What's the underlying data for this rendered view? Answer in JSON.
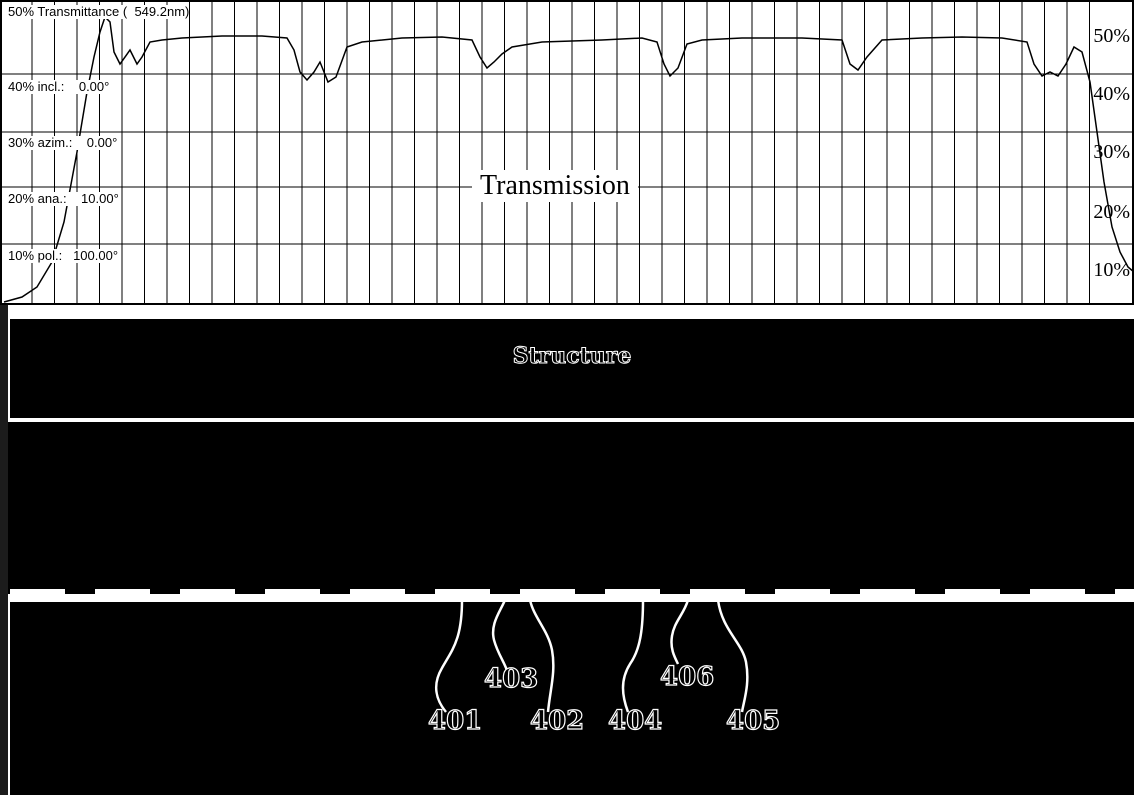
{
  "transmission": {
    "header_label": "50% Transmittance (  549.2nm)",
    "title": "Transmission",
    "left_labels": [
      {
        "pct": "40%",
        "name": "incl.:",
        "value": "0.00°"
      },
      {
        "pct": "30%",
        "name": "azim.:",
        "value": "0.00°"
      },
      {
        "pct": "20%",
        "name": "ana.:",
        "value": "10.00°"
      },
      {
        "pct": "10%",
        "name": "pol.:",
        "value": "100.00°"
      }
    ],
    "right_labels": [
      "50%",
      "40%",
      "30%",
      "20%",
      "10%"
    ]
  },
  "structure": {
    "title": "Structure"
  },
  "reference_numerals": [
    "401",
    "402",
    "403",
    "404",
    "405",
    "406"
  ],
  "colors": {
    "background": "#000000",
    "chart_background": "#ffffff",
    "line": "#000000",
    "electrode": "#ffffff"
  }
}
